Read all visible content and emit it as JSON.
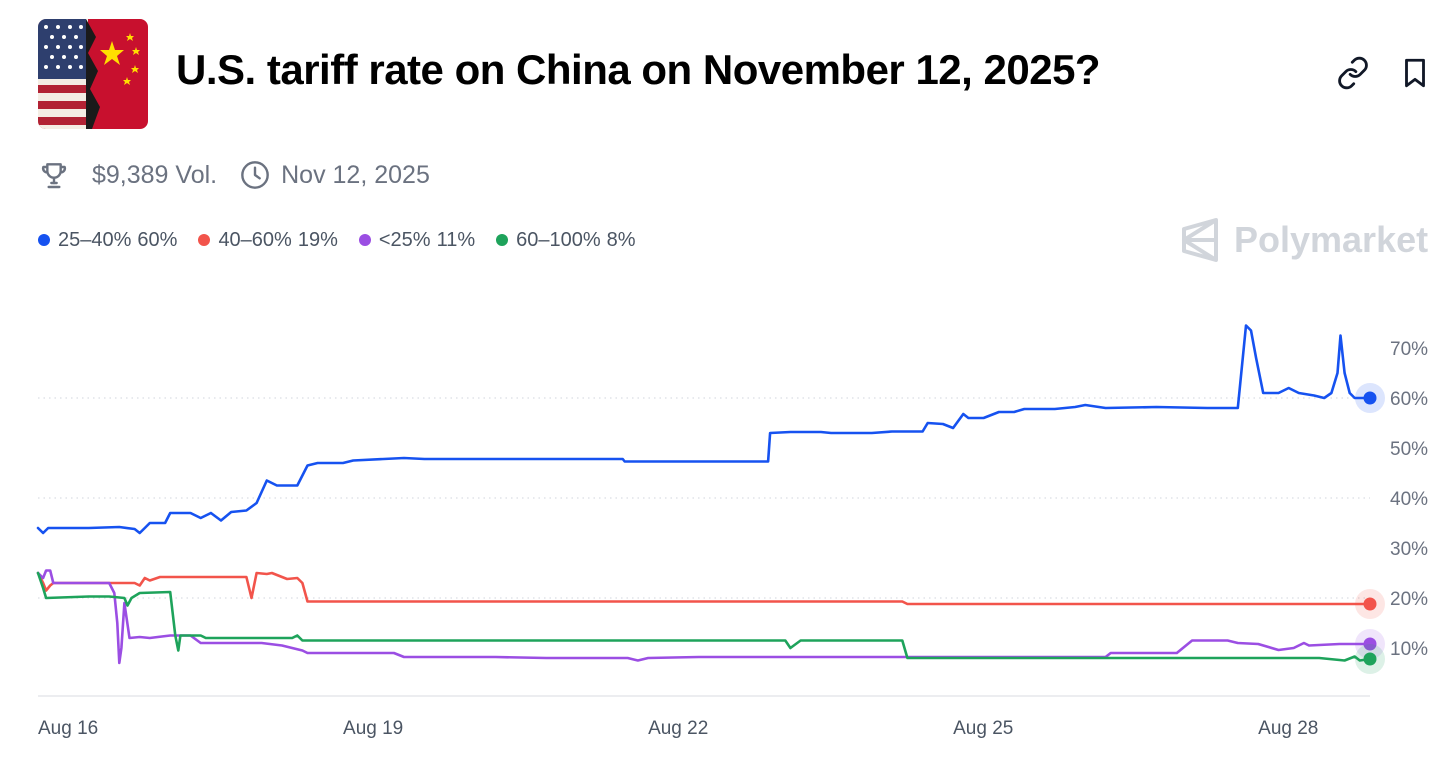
{
  "market": {
    "title": "U.S. tariff rate on China on November 12, 2025?",
    "volume": "$9,389 Vol.",
    "end_date": "Nov 12, 2025"
  },
  "watermark": "Polymarket",
  "icons": {
    "thumbnail": "us-china-flags-image",
    "link": "link-icon",
    "bookmark": "bookmark-icon",
    "trophy": "trophy-icon",
    "clock": "clock-icon",
    "logo": "polymarket-logo-icon"
  },
  "legend": [
    {
      "label": "25–40%",
      "value": "60%",
      "color": "#1652f0"
    },
    {
      "label": "40–60%",
      "value": "19%",
      "color": "#f2544b"
    },
    {
      "label": "<25%",
      "value": "11%",
      "color": "#9b4ee3"
    },
    {
      "label": "60–100%",
      "value": "8%",
      "color": "#1ea35b"
    }
  ],
  "chart_data": {
    "type": "line",
    "xlabel": "",
    "ylabel": "",
    "x_ticks": [
      {
        "day": 0,
        "label": "Aug 16"
      },
      {
        "day": 3,
        "label": "Aug 19"
      },
      {
        "day": 6,
        "label": "Aug 22"
      },
      {
        "day": 9,
        "label": "Aug 25"
      },
      {
        "day": 12,
        "label": "Aug 28"
      }
    ],
    "x_range_days": [
      0,
      13.1
    ],
    "x_origin_label": "Aug 16",
    "ylim": [
      0,
      76
    ],
    "y_ticks": [
      10,
      20,
      30,
      40,
      50,
      60,
      70
    ],
    "y_tick_labels": [
      "10%",
      "20%",
      "30%",
      "40%",
      "50%",
      "60%",
      "70%"
    ],
    "gridlines_at": [
      20,
      40,
      60
    ],
    "series": [
      {
        "name": "25–40%",
        "color": "#1652f0",
        "points": [
          [
            0,
            34
          ],
          [
            0.05,
            33
          ],
          [
            0.1,
            34
          ],
          [
            0.5,
            34
          ],
          [
            0.8,
            34.2
          ],
          [
            0.95,
            33.8
          ],
          [
            1.0,
            33
          ],
          [
            1.05,
            34
          ],
          [
            1.1,
            35
          ],
          [
            1.25,
            35
          ],
          [
            1.3,
            37
          ],
          [
            1.5,
            37
          ],
          [
            1.6,
            36
          ],
          [
            1.7,
            37
          ],
          [
            1.8,
            35.5
          ],
          [
            1.9,
            37.2
          ],
          [
            2.05,
            37.5
          ],
          [
            2.15,
            39
          ],
          [
            2.25,
            43.5
          ],
          [
            2.35,
            42.5
          ],
          [
            2.55,
            42.5
          ],
          [
            2.65,
            46.5
          ],
          [
            2.75,
            47
          ],
          [
            3.0,
            47
          ],
          [
            3.1,
            47.5
          ],
          [
            3.4,
            47.8
          ],
          [
            3.6,
            48
          ],
          [
            3.8,
            47.8
          ],
          [
            4.0,
            47.8
          ],
          [
            5.75,
            47.8
          ],
          [
            5.77,
            47.3
          ],
          [
            7.0,
            47.3
          ],
          [
            7.18,
            47.3
          ],
          [
            7.2,
            53
          ],
          [
            7.4,
            53.2
          ],
          [
            7.7,
            53.2
          ],
          [
            7.8,
            53
          ],
          [
            8.2,
            53
          ],
          [
            8.4,
            53.3
          ],
          [
            8.7,
            53.3
          ],
          [
            8.75,
            55
          ],
          [
            8.9,
            54.8
          ],
          [
            9.0,
            54
          ],
          [
            9.1,
            56.8
          ],
          [
            9.15,
            56
          ],
          [
            9.3,
            56
          ],
          [
            9.45,
            57.2
          ],
          [
            9.6,
            57.2
          ],
          [
            9.7,
            57.8
          ],
          [
            10.0,
            57.8
          ],
          [
            10.2,
            58.2
          ],
          [
            10.3,
            58.6
          ],
          [
            10.5,
            58
          ],
          [
            11.0,
            58.2
          ],
          [
            11.5,
            58
          ],
          [
            11.8,
            58
          ],
          [
            11.88,
            74.5
          ],
          [
            11.93,
            73.5
          ],
          [
            11.98,
            68
          ],
          [
            12.05,
            61
          ],
          [
            12.2,
            61
          ],
          [
            12.3,
            62
          ],
          [
            12.4,
            61
          ],
          [
            12.55,
            60.5
          ],
          [
            12.65,
            60
          ],
          [
            12.72,
            61
          ],
          [
            12.78,
            65
          ],
          [
            12.81,
            72.5
          ],
          [
            12.85,
            65
          ],
          [
            12.9,
            61
          ],
          [
            12.95,
            60
          ],
          [
            13.1,
            60
          ]
        ]
      },
      {
        "name": "40–60%",
        "color": "#f2544b",
        "points": [
          [
            0,
            25
          ],
          [
            0.05,
            23
          ],
          [
            0.08,
            21.5
          ],
          [
            0.12,
            22.5
          ],
          [
            0.15,
            23
          ],
          [
            0.6,
            23
          ],
          [
            0.95,
            23
          ],
          [
            1.0,
            22.5
          ],
          [
            1.05,
            24
          ],
          [
            1.1,
            23.5
          ],
          [
            1.2,
            24.2
          ],
          [
            2.05,
            24.2
          ],
          [
            2.1,
            20
          ],
          [
            2.15,
            25
          ],
          [
            2.25,
            24.8
          ],
          [
            2.3,
            25
          ],
          [
            2.45,
            23.8
          ],
          [
            2.55,
            24
          ],
          [
            2.6,
            23
          ],
          [
            2.65,
            19.3
          ],
          [
            3.0,
            19.3
          ],
          [
            8.5,
            19.3
          ],
          [
            8.55,
            18.8
          ],
          [
            13.1,
            18.8
          ]
        ]
      },
      {
        "name": "<25%",
        "color": "#9b4ee3",
        "points": [
          [
            0,
            25
          ],
          [
            0.05,
            24
          ],
          [
            0.08,
            25.5
          ],
          [
            0.12,
            25.5
          ],
          [
            0.15,
            23
          ],
          [
            0.5,
            23
          ],
          [
            0.7,
            23
          ],
          [
            0.75,
            21
          ],
          [
            0.78,
            15
          ],
          [
            0.8,
            7
          ],
          [
            0.82,
            10
          ],
          [
            0.85,
            19
          ],
          [
            0.9,
            12
          ],
          [
            1.0,
            12.2
          ],
          [
            1.1,
            12
          ],
          [
            1.3,
            12.5
          ],
          [
            1.5,
            12.5
          ],
          [
            1.6,
            11
          ],
          [
            2.0,
            11
          ],
          [
            2.2,
            11
          ],
          [
            2.4,
            10.5
          ],
          [
            2.6,
            9.5
          ],
          [
            2.65,
            9
          ],
          [
            3.0,
            9
          ],
          [
            3.5,
            9
          ],
          [
            3.6,
            8.2
          ],
          [
            4.5,
            8.2
          ],
          [
            5.0,
            8
          ],
          [
            5.8,
            8
          ],
          [
            5.9,
            7.5
          ],
          [
            6.0,
            8
          ],
          [
            6.5,
            8.2
          ],
          [
            7.5,
            8.2
          ],
          [
            8.6,
            8.2
          ],
          [
            8.7,
            8.2
          ],
          [
            10.5,
            8.2
          ],
          [
            10.55,
            9
          ],
          [
            11.2,
            9
          ],
          [
            11.35,
            11.5
          ],
          [
            11.7,
            11.5
          ],
          [
            11.8,
            11
          ],
          [
            12.0,
            10.8
          ],
          [
            12.2,
            9.6
          ],
          [
            12.35,
            10
          ],
          [
            12.45,
            11
          ],
          [
            12.5,
            10.5
          ],
          [
            12.8,
            10.8
          ],
          [
            13.1,
            10.8
          ]
        ]
      },
      {
        "name": "60–100%",
        "color": "#1ea35b",
        "points": [
          [
            0,
            25
          ],
          [
            0.05,
            22
          ],
          [
            0.08,
            20
          ],
          [
            0.5,
            20.3
          ],
          [
            0.7,
            20.3
          ],
          [
            0.85,
            20
          ],
          [
            0.88,
            18.5
          ],
          [
            0.92,
            20
          ],
          [
            1.0,
            21
          ],
          [
            1.3,
            21.2
          ],
          [
            1.35,
            12.5
          ],
          [
            1.38,
            9.5
          ],
          [
            1.4,
            12.5
          ],
          [
            1.6,
            12.5
          ],
          [
            1.65,
            12
          ],
          [
            2.5,
            12
          ],
          [
            2.55,
            12.5
          ],
          [
            2.6,
            11.5
          ],
          [
            3.5,
            11.5
          ],
          [
            5.0,
            11.5
          ],
          [
            7.35,
            11.5
          ],
          [
            7.4,
            10
          ],
          [
            7.5,
            11.5
          ],
          [
            8.5,
            11.5
          ],
          [
            8.55,
            8
          ],
          [
            10.0,
            8
          ],
          [
            12.5,
            8
          ],
          [
            12.6,
            8
          ],
          [
            12.85,
            7.5
          ],
          [
            12.95,
            8.3
          ],
          [
            13.0,
            7.5
          ],
          [
            13.1,
            7.8
          ]
        ]
      }
    ]
  }
}
